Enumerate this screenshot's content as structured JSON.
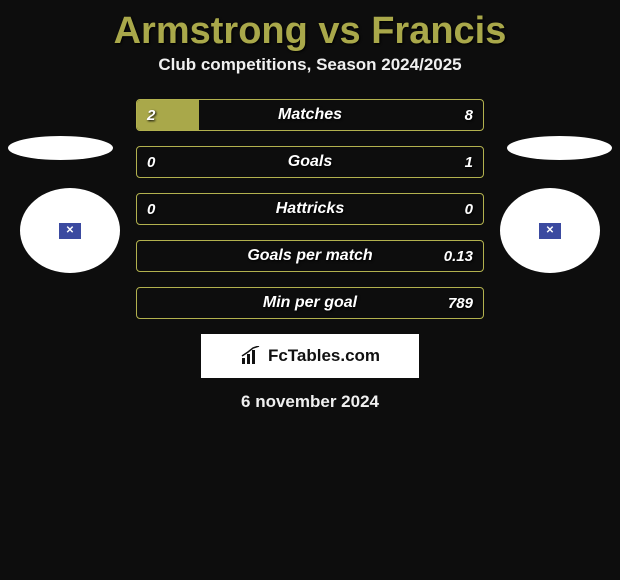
{
  "title": "Armstrong vs Francis",
  "subtitle": "Club competitions, Season 2024/2025",
  "colors": {
    "bg": "#0d0d0d",
    "accent": "#a9a84a",
    "bar_border": "#b2b14e",
    "text": "#ffffff"
  },
  "bars": [
    {
      "label": "Matches",
      "left": "2",
      "right": "8",
      "left_pct": 18,
      "right_pct": 0
    },
    {
      "label": "Goals",
      "left": "0",
      "right": "1",
      "left_pct": 0,
      "right_pct": 0
    },
    {
      "label": "Hattricks",
      "left": "0",
      "right": "0",
      "left_pct": 0,
      "right_pct": 0
    },
    {
      "label": "Goals per match",
      "left": "",
      "right": "0.13",
      "left_pct": 0,
      "right_pct": 0
    },
    {
      "label": "Min per goal",
      "left": "",
      "right": "789",
      "left_pct": 0,
      "right_pct": 0
    }
  ],
  "badge": {
    "text": "FcTables.com"
  },
  "date": "6 november 2024"
}
